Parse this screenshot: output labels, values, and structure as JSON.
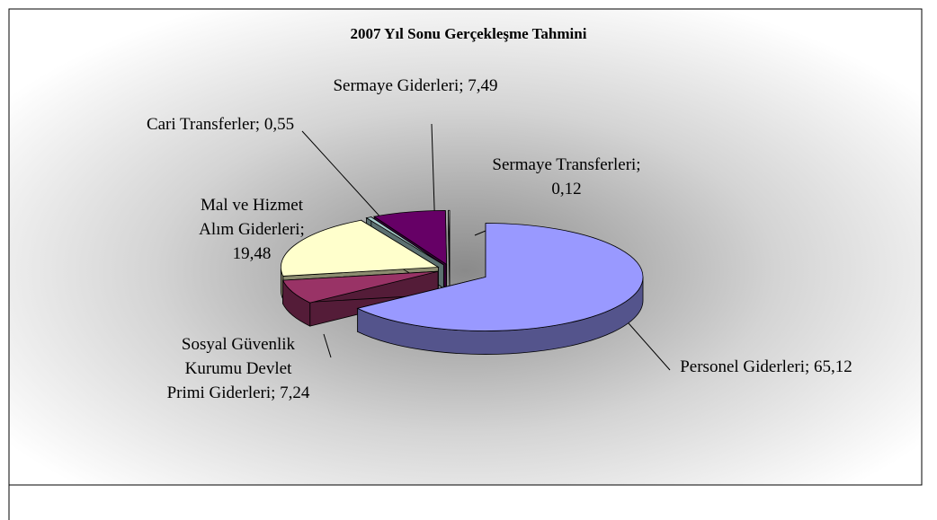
{
  "chart_data": {
    "type": "pie3d",
    "title": "2007 Yıl Sonu Gerçekleşme Tahmini",
    "categories": [
      "Personel Giderleri;",
      "Sosyal Güvenlik Kurumu Devlet Primi Giderleri;",
      "Mal ve Hizmet Alım Giderleri;",
      "Cari Transferler;",
      "Sermaye Giderleri;",
      "Sermaye Transferleri;"
    ],
    "values": [
      65.12,
      7.24,
      19.48,
      0.55,
      7.49,
      0.12
    ],
    "value_labels": [
      "65,12",
      "7,24",
      "19,48",
      "0,55",
      "7,49",
      "0,12"
    ],
    "colors": [
      "#9999ff",
      "#993366",
      "#ffffcc",
      "#a8cccc",
      "#660066",
      "#f4f4f4"
    ]
  }
}
